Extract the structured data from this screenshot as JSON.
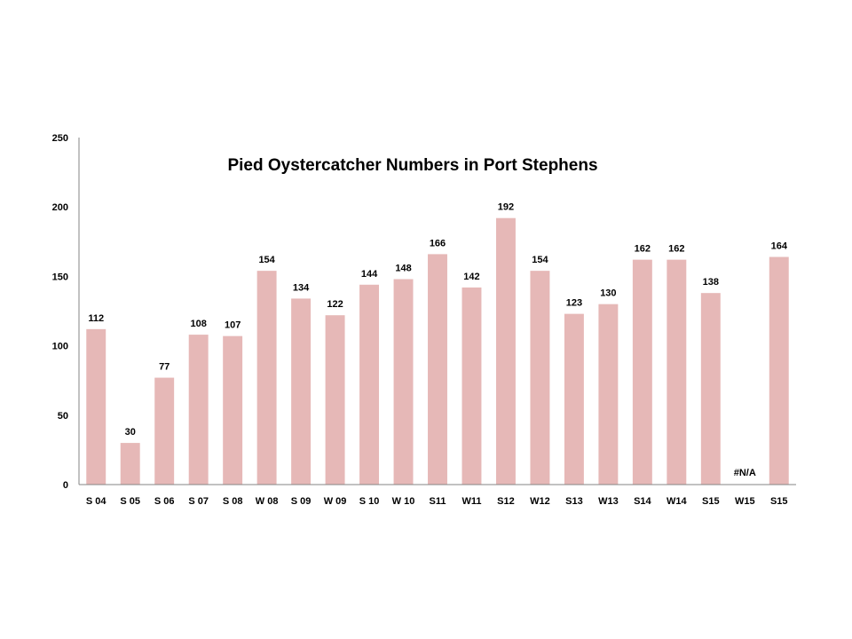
{
  "chart_data": {
    "type": "bar",
    "title": "Pied Oystercatcher Numbers in Port Stephens",
    "xlabel": "",
    "ylabel": "",
    "categories": [
      "S 04",
      "S 05",
      "S 06",
      "S 07",
      "S 08",
      "W 08",
      "S 09",
      "W  09",
      "S 10",
      "W 10",
      "S11",
      "W11",
      "S12",
      "W12",
      "S13",
      "W13",
      "S14",
      "W14",
      "S15",
      "W15",
      "S15"
    ],
    "values": [
      112,
      30,
      77,
      108,
      107,
      154,
      134,
      122,
      144,
      148,
      166,
      142,
      192,
      154,
      123,
      130,
      162,
      162,
      138,
      null,
      164
    ],
    "data_labels": [
      "112",
      "30",
      "77",
      "108",
      "107",
      "154",
      "134",
      "122",
      "144",
      "148",
      "166",
      "142",
      "192",
      "154",
      "123",
      "130",
      "162",
      "162",
      "138",
      "#N/A",
      "164"
    ],
    "ylim": [
      0,
      250
    ],
    "yticks": [
      "0",
      "50",
      "100",
      "150",
      "200",
      "250"
    ],
    "grid": false,
    "legend": "none",
    "bar_color": "#e6b8b7"
  }
}
